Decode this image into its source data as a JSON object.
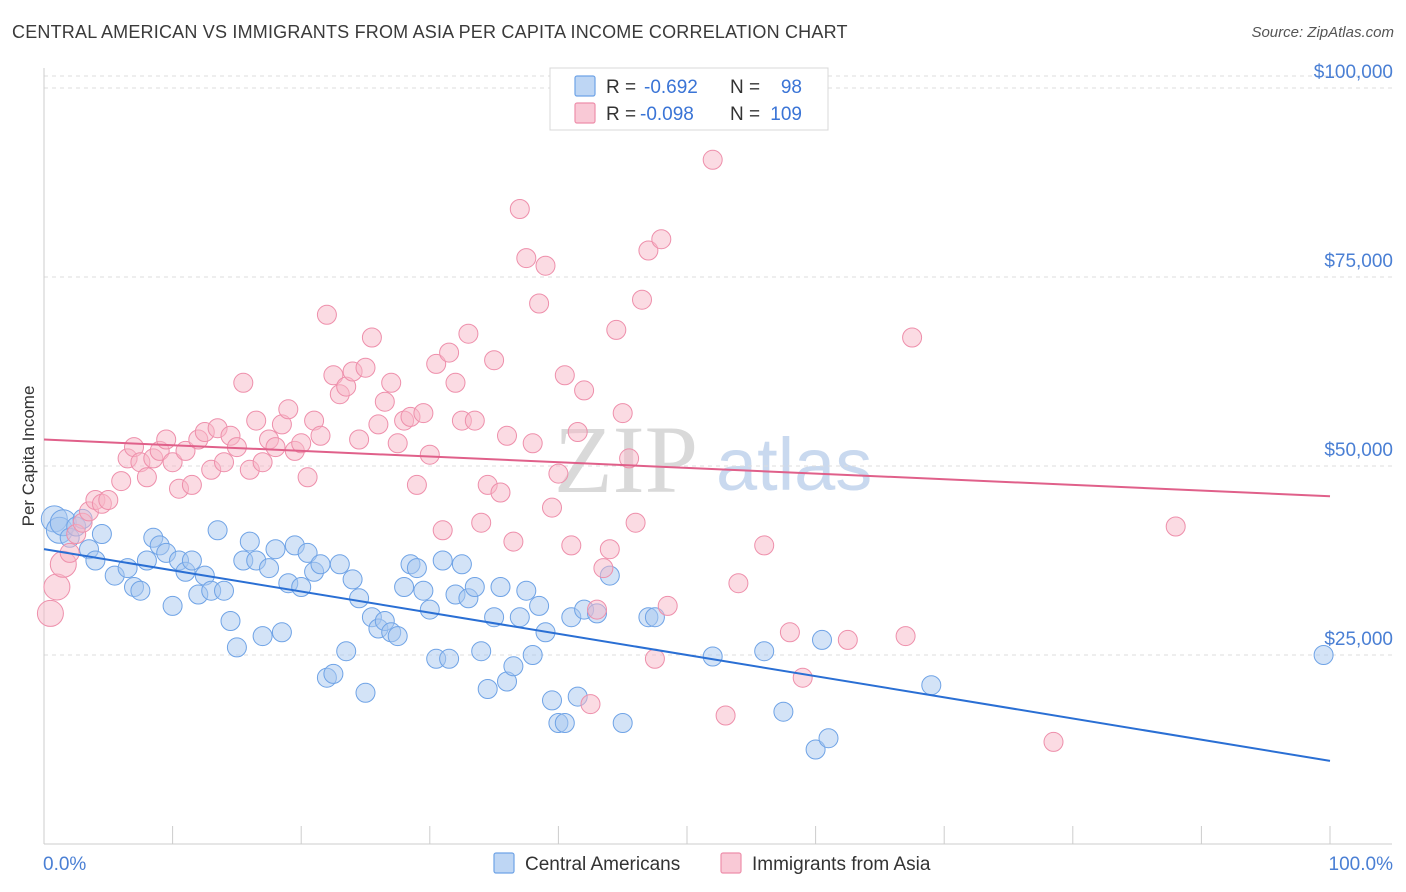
{
  "header": {
    "title": "CENTRAL AMERICAN VS IMMIGRANTS FROM ASIA PER CAPITA INCOME CORRELATION CHART",
    "source": "Source: ZipAtlas.com"
  },
  "watermark": {
    "zip": "ZIP",
    "atlas": "atlas"
  },
  "legend": {
    "r_label": "R =",
    "n_label": "N =",
    "rows": [
      {
        "r": "-0.692",
        "n": "98",
        "color": "#a8c8f0"
      },
      {
        "r": "-0.098",
        "n": "109",
        "color": "#f7b7c8"
      }
    ]
  },
  "chart_data": {
    "type": "scatter",
    "title": "CENTRAL AMERICAN VS IMMIGRANTS FROM ASIA PER CAPITA INCOME CORRELATION CHART",
    "xlabel": "",
    "ylabel": "Per Capita Income",
    "xlim": [
      0,
      100
    ],
    "ylim": [
      0,
      105000
    ],
    "x_tick_labels": [
      "0.0%",
      "100.0%"
    ],
    "y_ticks": [
      25000,
      50000,
      75000,
      100000
    ],
    "y_tick_labels": [
      "$25,000",
      "$50,000",
      "$75,000",
      "$100,000"
    ],
    "grid": true,
    "legend_position": "top-center",
    "series": [
      {
        "name": "Central Americans",
        "color": "#6fa3e6",
        "fill": "#a8c8f0",
        "line_color": "#2a6fd4",
        "trend": {
          "x": [
            0,
            100
          ],
          "y": [
            39000,
            11000
          ]
        },
        "points": [
          [
            0.8,
            43000
          ],
          [
            1.2,
            41500
          ],
          [
            1.5,
            42500
          ],
          [
            2.0,
            40500
          ],
          [
            2.5,
            42000
          ],
          [
            3.0,
            43000
          ],
          [
            3.5,
            39000
          ],
          [
            4.0,
            37500
          ],
          [
            4.5,
            41000
          ],
          [
            5.5,
            35500
          ],
          [
            6.5,
            36500
          ],
          [
            7.0,
            34000
          ],
          [
            7.5,
            33500
          ],
          [
            8.0,
            37500
          ],
          [
            8.5,
            40500
          ],
          [
            9.0,
            39500
          ],
          [
            9.5,
            38500
          ],
          [
            10.0,
            31500
          ],
          [
            10.5,
            37500
          ],
          [
            11.0,
            36000
          ],
          [
            11.5,
            37500
          ],
          [
            12.0,
            33000
          ],
          [
            12.5,
            35500
          ],
          [
            13.0,
            33500
          ],
          [
            13.5,
            41500
          ],
          [
            14.0,
            33500
          ],
          [
            14.5,
            29500
          ],
          [
            15.0,
            26000
          ],
          [
            15.5,
            37500
          ],
          [
            16.0,
            40000
          ],
          [
            16.5,
            37500
          ],
          [
            17.0,
            27500
          ],
          [
            17.5,
            36500
          ],
          [
            18.0,
            39000
          ],
          [
            18.5,
            28000
          ],
          [
            19.0,
            34500
          ],
          [
            19.5,
            39500
          ],
          [
            20.0,
            34000
          ],
          [
            20.5,
            38500
          ],
          [
            21.0,
            36000
          ],
          [
            21.5,
            37000
          ],
          [
            22.0,
            22000
          ],
          [
            22.5,
            22500
          ],
          [
            23.0,
            37000
          ],
          [
            23.5,
            25500
          ],
          [
            24.0,
            35000
          ],
          [
            24.5,
            32500
          ],
          [
            25.0,
            20000
          ],
          [
            25.5,
            30000
          ],
          [
            26.0,
            28500
          ],
          [
            26.5,
            29500
          ],
          [
            27.0,
            28000
          ],
          [
            27.5,
            27500
          ],
          [
            28.0,
            34000
          ],
          [
            28.5,
            37000
          ],
          [
            29.0,
            36500
          ],
          [
            29.5,
            33500
          ],
          [
            30.0,
            31000
          ],
          [
            30.5,
            24500
          ],
          [
            31.0,
            37500
          ],
          [
            31.5,
            24500
          ],
          [
            32.0,
            33000
          ],
          [
            32.5,
            37000
          ],
          [
            33.0,
            32500
          ],
          [
            33.5,
            34000
          ],
          [
            34.0,
            25500
          ],
          [
            34.5,
            20500
          ],
          [
            35.0,
            30000
          ],
          [
            35.5,
            34000
          ],
          [
            36.0,
            21500
          ],
          [
            36.5,
            23500
          ],
          [
            37.0,
            30000
          ],
          [
            37.5,
            33500
          ],
          [
            38.0,
            25000
          ],
          [
            38.5,
            31500
          ],
          [
            39.0,
            28000
          ],
          [
            39.5,
            19000
          ],
          [
            40.0,
            16000
          ],
          [
            40.5,
            16000
          ],
          [
            41.0,
            30000
          ],
          [
            41.5,
            19500
          ],
          [
            42.0,
            31000
          ],
          [
            43.0,
            30500
          ],
          [
            44.0,
            35500
          ],
          [
            45.0,
            16000
          ],
          [
            47.0,
            30000
          ],
          [
            47.5,
            30000
          ],
          [
            52.0,
            24800
          ],
          [
            56.0,
            25500
          ],
          [
            57.5,
            17500
          ],
          [
            60.0,
            12500
          ],
          [
            60.5,
            27000
          ],
          [
            61.0,
            14000
          ],
          [
            69.0,
            21000
          ],
          [
            99.5,
            25000
          ]
        ]
      },
      {
        "name": "Immigrants from Asia",
        "color": "#ee8fab",
        "fill": "#f7b7c8",
        "line_color": "#e0608a",
        "trend": {
          "x": [
            0,
            100
          ],
          "y": [
            53500,
            46000
          ]
        },
        "points": [
          [
            0.5,
            30500
          ],
          [
            1.0,
            34000
          ],
          [
            1.5,
            37000
          ],
          [
            2.0,
            38500
          ],
          [
            2.5,
            41000
          ],
          [
            3.0,
            42500
          ],
          [
            3.5,
            44000
          ],
          [
            4.0,
            45500
          ],
          [
            4.5,
            45000
          ],
          [
            5.0,
            45500
          ],
          [
            6.0,
            48000
          ],
          [
            6.5,
            51000
          ],
          [
            7.0,
            52500
          ],
          [
            7.5,
            50500
          ],
          [
            8.0,
            48500
          ],
          [
            8.5,
            51000
          ],
          [
            9.0,
            52000
          ],
          [
            9.5,
            53500
          ],
          [
            10.0,
            50500
          ],
          [
            10.5,
            47000
          ],
          [
            11.0,
            52000
          ],
          [
            11.5,
            47500
          ],
          [
            12.0,
            53500
          ],
          [
            12.5,
            54500
          ],
          [
            13.0,
            49500
          ],
          [
            13.5,
            55000
          ],
          [
            14.0,
            50500
          ],
          [
            14.5,
            54000
          ],
          [
            15.0,
            52500
          ],
          [
            15.5,
            61000
          ],
          [
            16.0,
            49500
          ],
          [
            16.5,
            56000
          ],
          [
            17.0,
            50500
          ],
          [
            17.5,
            53500
          ],
          [
            18.0,
            52500
          ],
          [
            18.5,
            55500
          ],
          [
            19.0,
            57500
          ],
          [
            19.5,
            52000
          ],
          [
            20.0,
            53000
          ],
          [
            20.5,
            48500
          ],
          [
            21.0,
            56000
          ],
          [
            21.5,
            54000
          ],
          [
            22.0,
            70000
          ],
          [
            22.5,
            62000
          ],
          [
            23.0,
            59500
          ],
          [
            23.5,
            60500
          ],
          [
            24.0,
            62500
          ],
          [
            24.5,
            53500
          ],
          [
            25.0,
            63000
          ],
          [
            25.5,
            67000
          ],
          [
            26.0,
            55500
          ],
          [
            26.5,
            58500
          ],
          [
            27.0,
            61000
          ],
          [
            27.5,
            53000
          ],
          [
            28.0,
            56000
          ],
          [
            28.5,
            56500
          ],
          [
            29.0,
            47500
          ],
          [
            29.5,
            57000
          ],
          [
            30.0,
            51500
          ],
          [
            30.5,
            63500
          ],
          [
            31.0,
            41500
          ],
          [
            31.5,
            65000
          ],
          [
            32.0,
            61000
          ],
          [
            32.5,
            56000
          ],
          [
            33.0,
            67500
          ],
          [
            33.5,
            56000
          ],
          [
            34.0,
            42500
          ],
          [
            34.5,
            47500
          ],
          [
            35.0,
            64000
          ],
          [
            35.5,
            46500
          ],
          [
            36.0,
            54000
          ],
          [
            36.5,
            40000
          ],
          [
            37.0,
            84000
          ],
          [
            37.5,
            77500
          ],
          [
            38.0,
            53000
          ],
          [
            38.5,
            71500
          ],
          [
            39.0,
            76500
          ],
          [
            39.5,
            44500
          ],
          [
            40.0,
            49000
          ],
          [
            40.5,
            62000
          ],
          [
            41.0,
            39500
          ],
          [
            41.5,
            54500
          ],
          [
            42.0,
            60000
          ],
          [
            42.5,
            18500
          ],
          [
            43.0,
            31000
          ],
          [
            43.5,
            36500
          ],
          [
            44.0,
            39000
          ],
          [
            44.5,
            68000
          ],
          [
            45.0,
            57000
          ],
          [
            45.5,
            51000
          ],
          [
            46.0,
            42500
          ],
          [
            46.5,
            72000
          ],
          [
            47.0,
            78500
          ],
          [
            47.5,
            24500
          ],
          [
            48.0,
            80000
          ],
          [
            48.5,
            31500
          ],
          [
            52.0,
            90500
          ],
          [
            53.0,
            17000
          ],
          [
            54.0,
            34500
          ],
          [
            56.0,
            39500
          ],
          [
            58.0,
            28000
          ],
          [
            59.0,
            22000
          ],
          [
            62.5,
            27000
          ],
          [
            67.0,
            27500
          ],
          [
            67.5,
            67000
          ],
          [
            78.5,
            13500
          ],
          [
            88.0,
            42000
          ]
        ]
      }
    ]
  },
  "bottom_legend": [
    "Central Americans",
    "Immigrants from Asia"
  ]
}
